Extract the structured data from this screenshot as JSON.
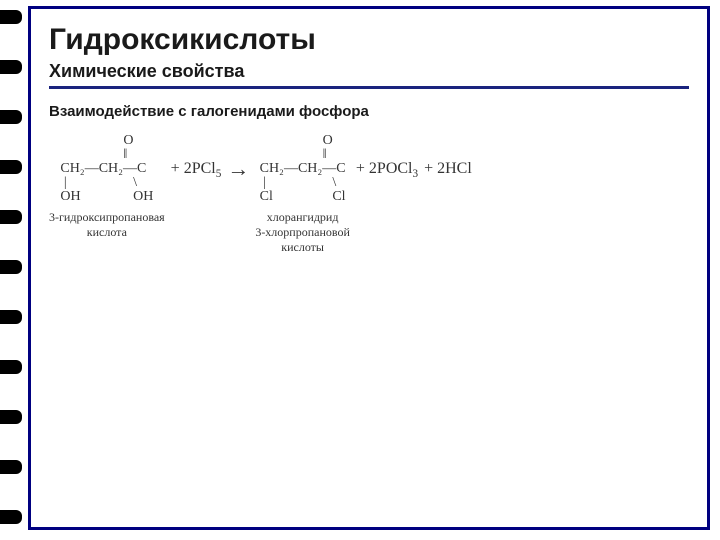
{
  "title": "Гидроксикислоты",
  "subtitle": "Химические свойства",
  "section_label": "Взаимодействие с галогенидами фосфора",
  "markers": {
    "count": 11,
    "top_start": 10,
    "spacing": 50
  },
  "reaction": {
    "reagent1": "3-гидроксипропановая\nкислота",
    "plus1": " +  2PCl",
    "plus1_sub": "5",
    "arrow": "→",
    "product1": "хлорангидрид\n3-хлорпропановой\nкислоты",
    "plus2": " +  2POCl",
    "plus2_sub": "3",
    "plus3": " +  2HCl",
    "struct_reagent": "                  O\n                  ‖\nCH₂—CH₂—C\n |                   \\\nOH               OH",
    "struct_product": "                  O\n                  ‖\nCH₂—CH₂—C\n |                   \\\nCl                 Cl"
  },
  "colors": {
    "frame": "#000080",
    "text": "#1a1a1a",
    "rule": "#1a237e"
  }
}
